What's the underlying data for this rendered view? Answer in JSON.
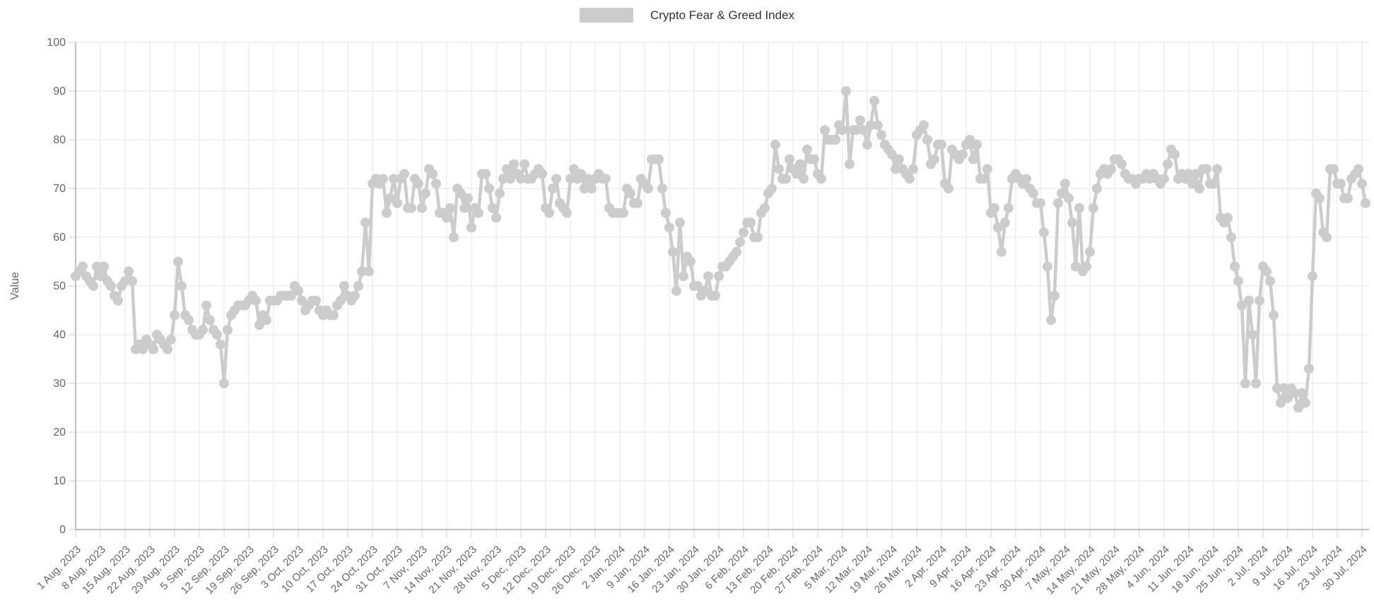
{
  "legend": {
    "label": "Crypto Fear & Greed Index",
    "swatch_color": "#cccccc"
  },
  "chart_data": {
    "type": "line",
    "title": "",
    "ylabel": "Value",
    "ylim": [
      0,
      100
    ],
    "y_ticks": [
      0,
      10,
      20,
      30,
      40,
      50,
      60,
      70,
      80,
      90,
      100
    ],
    "grid": true,
    "legend_position": "top-center",
    "x_tick_interval_days": 7,
    "x_tick_labels": [
      "1 Aug, 2023",
      "8 Aug, 2023",
      "15 Aug, 2023",
      "22 Aug, 2023",
      "29 Aug, 2023",
      "5 Sep, 2023",
      "12 Sep, 2023",
      "19 Sep, 2023",
      "26 Sep, 2023",
      "3 Oct, 2023",
      "10 Oct, 2023",
      "17 Oct, 2023",
      "24 Oct, 2023",
      "31 Oct, 2023",
      "7 Nov, 2023",
      "14 Nov, 2023",
      "21 Nov, 2023",
      "28 Nov, 2023",
      "5 Dec, 2023",
      "12 Dec, 2023",
      "19 Dec, 2023",
      "26 Dec, 2023",
      "2 Jan, 2024",
      "9 Jan, 2024",
      "16 Jan, 2024",
      "23 Jan, 2024",
      "30 Jan, 2024",
      "6 Feb, 2024",
      "13 Feb, 2024",
      "20 Feb, 2024",
      "27 Feb, 2024",
      "5 Mar, 2024",
      "12 Mar, 2024",
      "19 Mar, 2024",
      "26 Mar, 2024",
      "2 Apr, 2024",
      "9 Apr, 2024",
      "16 Apr, 2024",
      "23 Apr, 2024",
      "30 Apr, 2024",
      "7 May, 2024",
      "14 May, 2024",
      "21 May, 2024",
      "28 May, 2024",
      "4 Jun, 2024",
      "11 Jun, 2024",
      "18 Jun, 2024",
      "25 Jun, 2024",
      "2 Jul, 2024",
      "9 Jul, 2024",
      "16 Jul, 2024",
      "23 Jul, 2024",
      "30 Jul, 2024"
    ],
    "series": [
      {
        "name": "Crypto Fear & Greed Index",
        "color": "#cccccc",
        "start_label": "1 Aug, 2023",
        "values": [
          52,
          53,
          54,
          52,
          51,
          50,
          54,
          52,
          54,
          51,
          50,
          48,
          47,
          50,
          51,
          53,
          51,
          37,
          38,
          37,
          39,
          38,
          37,
          40,
          39,
          38,
          37,
          39,
          44,
          55,
          50,
          44,
          43,
          41,
          40,
          40,
          41,
          46,
          43,
          41,
          40,
          38,
          30,
          41,
          44,
          45,
          46,
          46,
          46,
          47,
          48,
          47,
          42,
          44,
          43,
          47,
          47,
          47,
          48,
          48,
          48,
          48,
          50,
          49,
          47,
          45,
          46,
          47,
          47,
          45,
          44,
          45,
          44,
          44,
          46,
          47,
          50,
          48,
          47,
          48,
          50,
          53,
          63,
          53,
          71,
          72,
          71,
          72,
          65,
          68,
          72,
          67,
          72,
          73,
          66,
          66,
          72,
          71,
          66,
          69,
          74,
          73,
          71,
          65,
          65,
          64,
          66,
          60,
          70,
          69,
          66,
          68,
          62,
          66,
          65,
          73,
          73,
          70,
          66,
          64,
          69,
          72,
          74,
          72,
          75,
          73,
          72,
          75,
          72,
          72,
          73,
          74,
          73,
          66,
          65,
          70,
          72,
          67,
          66,
          65,
          72,
          74,
          72,
          73,
          70,
          72,
          70,
          72,
          73,
          72,
          72,
          66,
          65,
          65,
          65,
          65,
          70,
          69,
          67,
          67,
          72,
          71,
          70,
          76,
          76,
          76,
          70,
          65,
          62,
          57,
          49,
          63,
          52,
          56,
          55,
          50,
          50,
          48,
          49,
          52,
          48,
          48,
          52,
          54,
          54,
          55,
          56,
          57,
          59,
          61,
          63,
          63,
          60,
          60,
          65,
          66,
          69,
          70,
          79,
          74,
          72,
          72,
          76,
          74,
          73,
          75,
          72,
          78,
          76,
          76,
          73,
          72,
          82,
          80,
          80,
          80,
          83,
          82,
          90,
          75,
          82,
          82,
          84,
          82,
          79,
          83,
          88,
          83,
          81,
          79,
          78,
          77,
          74,
          76,
          74,
          73,
          72,
          74,
          81,
          82,
          83,
          80,
          75,
          76,
          79,
          79,
          71,
          70,
          78,
          77,
          76,
          77,
          79,
          80,
          76,
          79,
          72,
          72,
          74,
          65,
          66,
          62,
          57,
          63,
          66,
          72,
          73,
          72,
          71,
          72,
          70,
          69,
          67,
          67,
          61,
          54,
          43,
          48,
          67,
          69,
          71,
          68,
          63,
          54,
          66,
          53,
          54,
          57,
          66,
          70,
          73,
          74,
          73,
          74,
          76,
          76,
          75,
          73,
          72,
          72,
          71,
          72,
          72,
          73,
          72,
          73,
          72,
          71,
          72,
          75,
          78,
          77,
          72,
          73,
          72,
          73,
          71,
          73,
          70,
          74,
          74,
          71,
          71,
          74,
          64,
          63,
          64,
          60,
          54,
          51,
          46,
          30,
          47,
          40,
          30,
          47,
          54,
          53,
          51,
          44,
          29,
          26,
          29,
          27,
          29,
          28,
          25,
          28,
          26,
          33,
          52,
          69,
          68,
          61,
          60,
          74,
          74,
          71,
          71,
          68,
          68,
          72,
          73,
          74,
          71,
          67
        ]
      }
    ],
    "colors": {
      "series": "#cccccc",
      "grid_line": "#e5e5e5",
      "axis_line": "#aaaaaa",
      "tick_mark": "#cccccc",
      "x_tick_mark": "#d6d6d6",
      "tick_label": "#666666",
      "axis_title": "#666666",
      "legend_text": "#333333",
      "background": "#ffffff"
    }
  }
}
